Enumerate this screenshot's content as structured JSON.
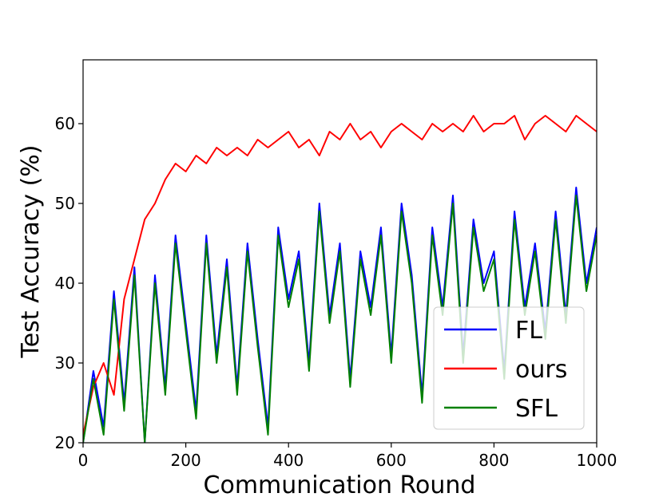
{
  "chart_data": {
    "type": "line",
    "title": "",
    "xlabel": "Communication Round",
    "ylabel": "Test Accuracy (%)",
    "xlim": [
      0,
      1000
    ],
    "ylim": [
      20,
      68
    ],
    "xticks": [
      "0",
      "200",
      "400",
      "600",
      "800",
      "1000"
    ],
    "yticks": [
      "20",
      "30",
      "40",
      "50",
      "60"
    ],
    "grid": false,
    "legend_position": "lower-right",
    "series": [
      {
        "name": "FL",
        "color": "#0000ff",
        "x": [
          0,
          20,
          40,
          60,
          80,
          100,
          120,
          140,
          160,
          180,
          200,
          220,
          240,
          260,
          280,
          300,
          320,
          340,
          360,
          380,
          400,
          420,
          440,
          460,
          480,
          500,
          520,
          540,
          560,
          580,
          600,
          620,
          640,
          660,
          680,
          700,
          720,
          740,
          760,
          780,
          800,
          820,
          840,
          860,
          880,
          900,
          920,
          940,
          960,
          980,
          1000
        ],
        "y": [
          20,
          29,
          22,
          39,
          25,
          42,
          20,
          41,
          27,
          46,
          35,
          24,
          46,
          31,
          43,
          27,
          45,
          33,
          22,
          47,
          38,
          44,
          30,
          50,
          36,
          45,
          28,
          44,
          37,
          47,
          31,
          50,
          41,
          26,
          47,
          37,
          51,
          31,
          48,
          40,
          44,
          29,
          49,
          37,
          45,
          34,
          49,
          36,
          52,
          40,
          47
        ]
      },
      {
        "name": "ours",
        "color": "#ff0000",
        "x": [
          0,
          20,
          40,
          60,
          80,
          100,
          120,
          140,
          160,
          180,
          200,
          220,
          240,
          260,
          280,
          300,
          320,
          340,
          360,
          380,
          400,
          420,
          440,
          460,
          480,
          500,
          520,
          540,
          560,
          580,
          600,
          620,
          640,
          660,
          680,
          700,
          720,
          740,
          760,
          780,
          800,
          820,
          840,
          860,
          880,
          900,
          920,
          940,
          960,
          980,
          1000
        ],
        "y": [
          21,
          27,
          30,
          26,
          38,
          43,
          48,
          50,
          53,
          55,
          54,
          56,
          55,
          57,
          56,
          57,
          56,
          58,
          57,
          58,
          59,
          57,
          58,
          56,
          59,
          58,
          60,
          58,
          59,
          57,
          59,
          60,
          59,
          58,
          60,
          59,
          60,
          59,
          61,
          59,
          60,
          60,
          61,
          58,
          60,
          61,
          60,
          59,
          61,
          60,
          59
        ]
      },
      {
        "name": "SFL",
        "color": "#008000",
        "x": [
          0,
          20,
          40,
          60,
          80,
          100,
          120,
          140,
          160,
          180,
          200,
          220,
          240,
          260,
          280,
          300,
          320,
          340,
          360,
          380,
          400,
          420,
          440,
          460,
          480,
          500,
          520,
          540,
          560,
          580,
          600,
          620,
          640,
          660,
          680,
          700,
          720,
          740,
          760,
          780,
          800,
          820,
          840,
          860,
          880,
          900,
          920,
          940,
          960,
          980,
          1000
        ],
        "y": [
          20,
          28,
          21,
          38,
          24,
          41,
          20,
          40,
          26,
          45,
          34,
          23,
          45,
          30,
          42,
          26,
          44,
          32,
          21,
          46,
          37,
          43,
          29,
          49,
          35,
          44,
          27,
          43,
          36,
          46,
          30,
          49,
          40,
          25,
          46,
          36,
          50,
          30,
          47,
          39,
          43,
          28,
          48,
          36,
          44,
          33,
          48,
          35,
          51,
          39,
          46
        ]
      }
    ]
  }
}
